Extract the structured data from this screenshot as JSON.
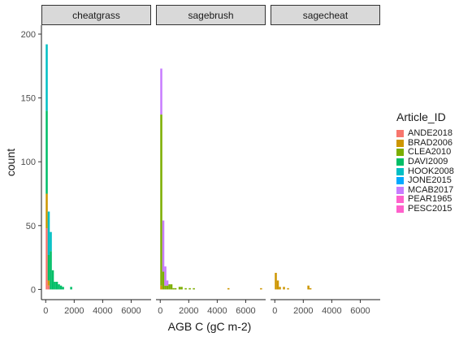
{
  "chart_data": {
    "type": "bar",
    "chart_kind": "stacked histogram, faceted",
    "xlabel": "AGB C (gC m-2)",
    "ylabel": "count",
    "xlim": [
      -300,
      7400
    ],
    "ylim": [
      -8,
      207
    ],
    "x_ticks": [
      0,
      2000,
      4000,
      6000
    ],
    "x_tick_labels": [
      "0",
      "2000",
      "4000",
      "6000"
    ],
    "y_ticks": [
      0,
      50,
      100,
      150,
      200
    ],
    "y_tick_labels": [
      "0",
      "50",
      "100",
      "150",
      "200"
    ],
    "bin_width": 143,
    "grid": false,
    "legend_position": "right",
    "legend_title": "Article_ID",
    "series": [
      {
        "name": "ANDE2018",
        "color": "#F8766D"
      },
      {
        "name": "BRAD2006",
        "color": "#CD9600"
      },
      {
        "name": "CLEA2010",
        "color": "#7CAE00"
      },
      {
        "name": "DAVI2009",
        "color": "#00BE67"
      },
      {
        "name": "HOOK2008",
        "color": "#00BFC4"
      },
      {
        "name": "JONE2015",
        "color": "#00A9FF"
      },
      {
        "name": "MCAB2017",
        "color": "#C77CFF"
      },
      {
        "name": "PEAR1965",
        "color": "#FF61CC"
      },
      {
        "name": "PESC2015",
        "color": "#FF61CC"
      }
    ],
    "panels": [
      {
        "label": "cheatgrass",
        "bins": [
          {
            "x": 0,
            "stack": [
              {
                "series": "ANDE2018",
                "value": 48
              },
              {
                "series": "BRAD2006",
                "value": 27
              },
              {
                "series": "DAVI2009",
                "value": 65
              },
              {
                "series": "HOOK2008",
                "value": 52
              }
            ]
          },
          {
            "x": 143,
            "stack": [
              {
                "series": "ANDE2018",
                "value": 3
              },
              {
                "series": "BRAD2006",
                "value": 4
              },
              {
                "series": "DAVI2009",
                "value": 20
              },
              {
                "series": "HOOK2008",
                "value": 34
              }
            ]
          },
          {
            "x": 286,
            "stack": [
              {
                "series": "DAVI2009",
                "value": 30
              },
              {
                "series": "HOOK2008",
                "value": 15
              }
            ]
          },
          {
            "x": 429,
            "stack": [
              {
                "series": "DAVI2009",
                "value": 15
              }
            ]
          },
          {
            "x": 572,
            "stack": [
              {
                "series": "DAVI2009",
                "value": 6
              }
            ]
          },
          {
            "x": 715,
            "stack": [
              {
                "series": "DAVI2009",
                "value": 6
              }
            ]
          },
          {
            "x": 858,
            "stack": [
              {
                "series": "DAVI2009",
                "value": 4
              }
            ]
          },
          {
            "x": 1001,
            "stack": [
              {
                "series": "DAVI2009",
                "value": 3
              }
            ]
          },
          {
            "x": 1144,
            "stack": [
              {
                "series": "DAVI2009",
                "value": 2
              }
            ]
          },
          {
            "x": 1716,
            "stack": [
              {
                "series": "DAVI2009",
                "value": 2
              }
            ]
          }
        ]
      },
      {
        "label": "sagebrush",
        "bins": [
          {
            "x": 0,
            "stack": [
              {
                "series": "BRAD2006",
                "value": 3
              },
              {
                "series": "CLEA2010",
                "value": 134
              },
              {
                "series": "MCAB2017",
                "value": 36
              }
            ]
          },
          {
            "x": 143,
            "stack": [
              {
                "series": "CLEA2010",
                "value": 14
              },
              {
                "series": "MCAB2017",
                "value": 40
              }
            ]
          },
          {
            "x": 286,
            "stack": [
              {
                "series": "CLEA2010",
                "value": 3
              },
              {
                "series": "MCAB2017",
                "value": 15
              }
            ]
          },
          {
            "x": 429,
            "stack": [
              {
                "series": "CLEA2010",
                "value": 3
              },
              {
                "series": "MCAB2017",
                "value": 4
              }
            ]
          },
          {
            "x": 572,
            "stack": [
              {
                "series": "CLEA2010",
                "value": 4
              }
            ]
          },
          {
            "x": 715,
            "stack": [
              {
                "series": "CLEA2010",
                "value": 4
              }
            ]
          },
          {
            "x": 858,
            "stack": [
              {
                "series": "CLEA2010",
                "value": 1
              }
            ]
          },
          {
            "x": 1001,
            "stack": [
              {
                "series": "CLEA2010",
                "value": 1
              }
            ]
          },
          {
            "x": 1287,
            "stack": [
              {
                "series": "CLEA2010",
                "value": 2
              }
            ]
          },
          {
            "x": 1430,
            "stack": [
              {
                "series": "CLEA2010",
                "value": 2
              }
            ]
          },
          {
            "x": 1716,
            "stack": [
              {
                "series": "CLEA2010",
                "value": 1
              }
            ]
          },
          {
            "x": 2002,
            "stack": [
              {
                "series": "CLEA2010",
                "value": 1
              }
            ]
          },
          {
            "x": 2288,
            "stack": [
              {
                "series": "CLEA2010",
                "value": 1
              }
            ]
          },
          {
            "x": 4719,
            "stack": [
              {
                "series": "BRAD2006",
                "value": 1
              }
            ]
          },
          {
            "x": 7007,
            "stack": [
              {
                "series": "BRAD2006",
                "value": 1
              }
            ]
          }
        ]
      },
      {
        "label": "sagecheat",
        "bins": [
          {
            "x": 0,
            "stack": [
              {
                "series": "BRAD2006",
                "value": 13
              }
            ]
          },
          {
            "x": 143,
            "stack": [
              {
                "series": "BRAD2006",
                "value": 7
              }
            ]
          },
          {
            "x": 286,
            "stack": [
              {
                "series": "BRAD2006",
                "value": 2
              }
            ]
          },
          {
            "x": 572,
            "stack": [
              {
                "series": "BRAD2006",
                "value": 2
              }
            ]
          },
          {
            "x": 858,
            "stack": [
              {
                "series": "BRAD2006",
                "value": 1
              }
            ]
          },
          {
            "x": 2288,
            "stack": [
              {
                "series": "BRAD2006",
                "value": 3
              }
            ]
          },
          {
            "x": 2431,
            "stack": [
              {
                "series": "BRAD2006",
                "value": 1
              }
            ]
          }
        ]
      }
    ]
  }
}
